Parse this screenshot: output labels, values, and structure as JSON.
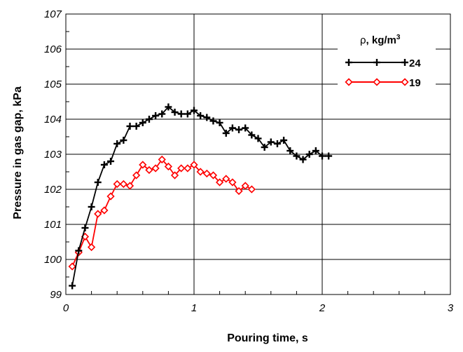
{
  "chart_data": {
    "type": "line",
    "title": "",
    "xlabel": "Pouring time, s",
    "ylabel": "Pressure in gas gap, kPa",
    "xlim": [
      0,
      3
    ],
    "ylim": [
      99,
      107
    ],
    "xticks": [
      "0",
      "1",
      "2",
      "3"
    ],
    "yticks": [
      "99",
      "100",
      "101",
      "102",
      "103",
      "104",
      "105",
      "106",
      "107"
    ],
    "grid": true,
    "legend": {
      "title_symbol": "ρ",
      "title_units": ", kg/m",
      "title_sup": "3",
      "placement": "top-right"
    },
    "series": [
      {
        "name": "24",
        "color": "#000000",
        "marker": "plus",
        "x": [
          0.05,
          0.1,
          0.15,
          0.2,
          0.25,
          0.3,
          0.35,
          0.4,
          0.45,
          0.5,
          0.55,
          0.6,
          0.65,
          0.7,
          0.75,
          0.8,
          0.85,
          0.9,
          0.95,
          1.0,
          1.05,
          1.1,
          1.15,
          1.2,
          1.25,
          1.3,
          1.35,
          1.4,
          1.45,
          1.5,
          1.55,
          1.6,
          1.65,
          1.7,
          1.75,
          1.8,
          1.85,
          1.9,
          1.95,
          2.0,
          2.05
        ],
        "y": [
          99.25,
          100.25,
          100.9,
          101.5,
          102.2,
          102.7,
          102.8,
          103.3,
          103.4,
          103.8,
          103.8,
          103.9,
          104.0,
          104.1,
          104.15,
          104.35,
          104.2,
          104.15,
          104.15,
          104.25,
          104.1,
          104.05,
          103.95,
          103.9,
          103.6,
          103.75,
          103.7,
          103.75,
          103.55,
          103.45,
          103.2,
          103.35,
          103.3,
          103.4,
          103.1,
          102.95,
          102.85,
          103.0,
          103.1,
          102.95,
          102.95
        ]
      },
      {
        "name": "19",
        "color": "#ff0000",
        "marker": "diamond",
        "x": [
          0.05,
          0.1,
          0.15,
          0.2,
          0.25,
          0.3,
          0.35,
          0.4,
          0.45,
          0.5,
          0.55,
          0.6,
          0.65,
          0.7,
          0.75,
          0.8,
          0.85,
          0.9,
          0.95,
          1.0,
          1.05,
          1.1,
          1.15,
          1.2,
          1.25,
          1.3,
          1.35,
          1.4,
          1.45
        ],
        "y": [
          99.8,
          100.2,
          100.65,
          100.35,
          101.3,
          101.4,
          101.8,
          102.15,
          102.15,
          102.1,
          102.4,
          102.7,
          102.55,
          102.6,
          102.85,
          102.65,
          102.4,
          102.6,
          102.6,
          102.7,
          102.5,
          102.45,
          102.4,
          102.2,
          102.3,
          102.2,
          101.95,
          102.1,
          102.0
        ]
      }
    ]
  }
}
